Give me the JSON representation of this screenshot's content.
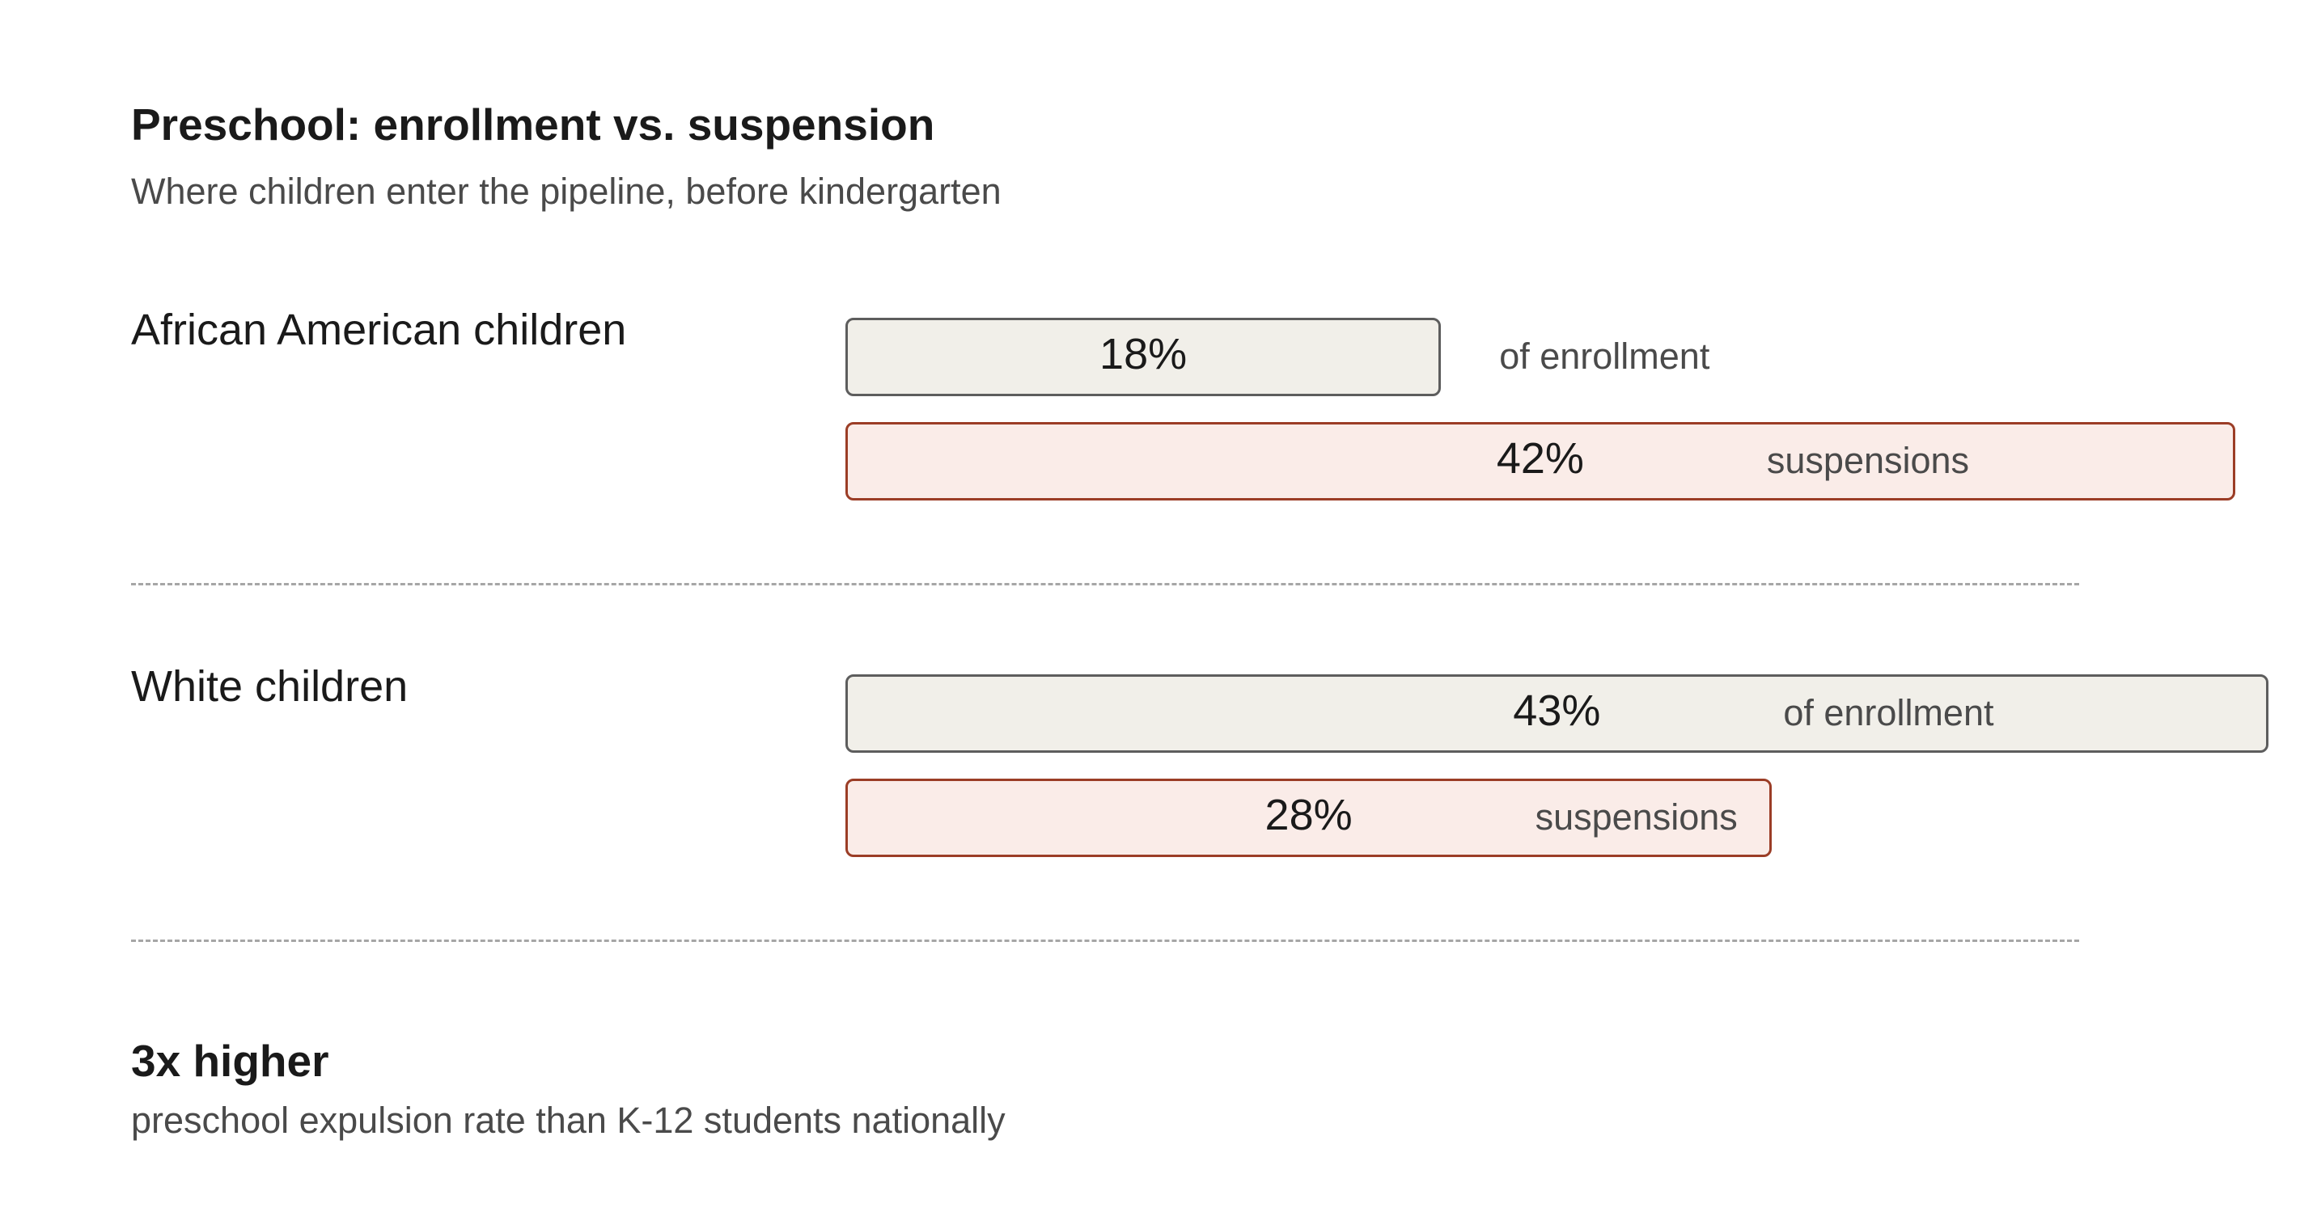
{
  "chart_data": {
    "type": "bar",
    "orientation": "horizontal",
    "title": "Preschool: enrollment vs. suspension",
    "subtitle": "Where children enter the pipeline, before kindergarten",
    "unit": "%",
    "groups": [
      {
        "label": "African American children",
        "bars": [
          {
            "value": 18,
            "value_label": "18%",
            "caption": "of enrollment",
            "kind": "enrollment"
          },
          {
            "value": 42,
            "value_label": "42%",
            "caption": "suspensions",
            "kind": "suspension"
          }
        ]
      },
      {
        "label": "White children",
        "bars": [
          {
            "value": 43,
            "value_label": "43%",
            "caption": "of enrollment",
            "kind": "enrollment"
          },
          {
            "value": 28,
            "value_label": "28%",
            "caption": "suspensions",
            "kind": "suspension"
          }
        ]
      }
    ],
    "grid": false,
    "colors": {
      "enrollment_fill": "#f1efe9",
      "enrollment_stroke": "#5d5d5d",
      "suspension_fill": "#faece8",
      "suspension_stroke": "#9b3d26"
    }
  },
  "callout": {
    "headline": "3x higher",
    "text": "preschool expulsion rate than K-12 students nationally"
  }
}
